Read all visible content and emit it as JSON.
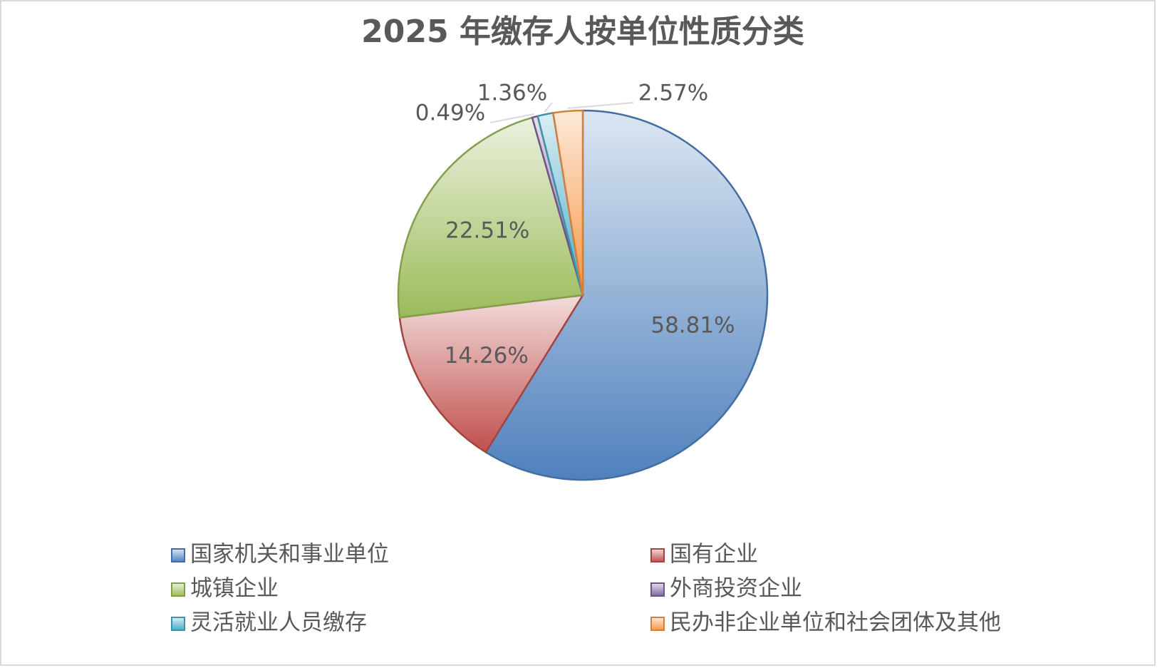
{
  "chart_data": {
    "type": "pie",
    "title": "2025 年缴存人按单位性质分类",
    "categories": [
      "国家机关和事业单位",
      "国有企业",
      "城镇企业",
      "外商投资企业",
      "灵活就业人员缴存",
      "民办非企业单位和社会团体及其他"
    ],
    "values": [
      58.81,
      14.26,
      22.51,
      0.49,
      1.36,
      2.57
    ],
    "value_labels": [
      "58.81%",
      "14.26%",
      "22.51%",
      "0.49%",
      "1.36%",
      "2.57%"
    ],
    "colors": [
      "#4f81bd",
      "#c0504d",
      "#9bbb59",
      "#8064a2",
      "#4bacc6",
      "#f79646"
    ],
    "legend": "bottom"
  }
}
